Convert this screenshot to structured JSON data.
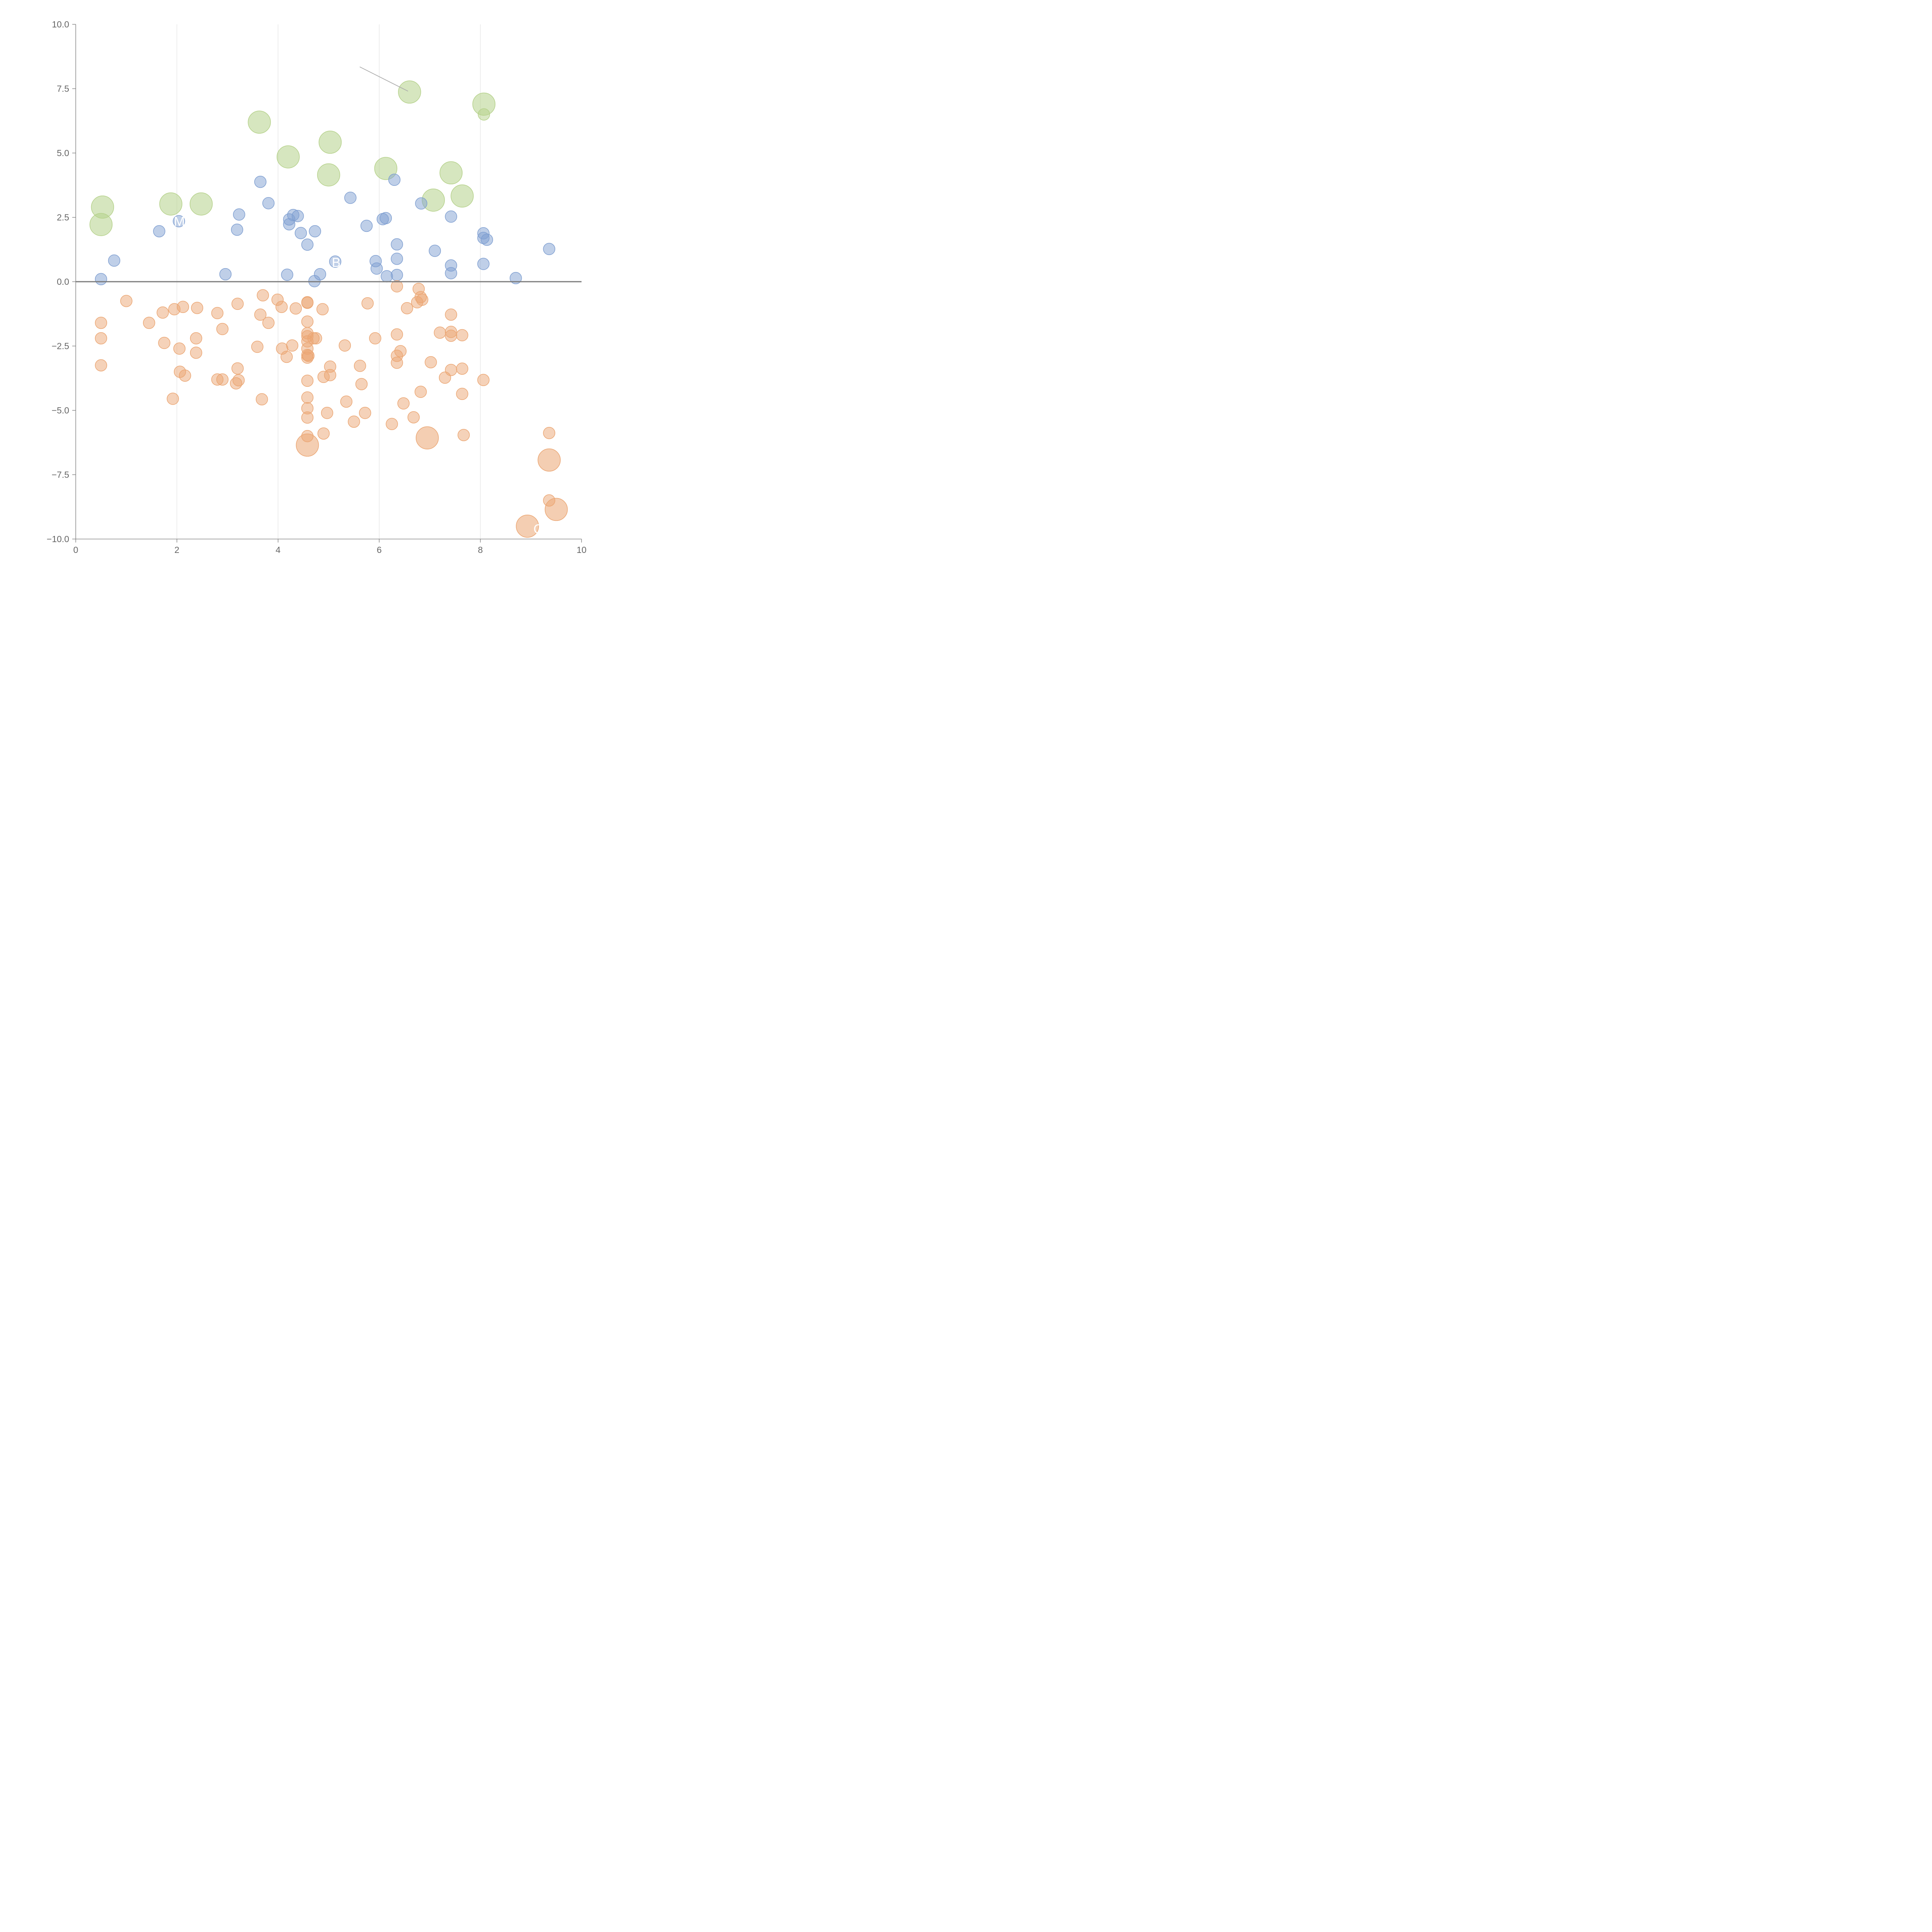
{
  "chart_data": {
    "type": "scatter",
    "title": "",
    "xlabel": "",
    "ylabel": "",
    "xlim": [
      0,
      10
    ],
    "ylim": [
      -10,
      10
    ],
    "x_ticks": [
      "0",
      "2",
      "4",
      "6",
      "8",
      "10"
    ],
    "y_ticks": [
      "10.0",
      "7.5",
      "5.0",
      "2.5",
      "0.0",
      "−2.5",
      "−5.0",
      "−7.5",
      "−10.0"
    ],
    "grid": "vertical",
    "reference_line_y": 0,
    "colors": {
      "green": "#b5d18a",
      "blue": "#7f9fd1",
      "orange": "#eba673"
    },
    "labels": [
      {
        "text": "M",
        "x": 2.05,
        "y": 2.35
      },
      {
        "text": "B",
        "x": 5.15,
        "y": 0.75
      },
      {
        "text": "G",
        "x": 9.15,
        "y": -9.6
      }
    ],
    "series": [
      {
        "group": "green",
        "points": [
          [
            0.53,
            2.9,
            1
          ],
          [
            0.5,
            2.22,
            1
          ],
          [
            1.88,
            3.02,
            1
          ],
          [
            2.48,
            3.02,
            1
          ],
          [
            3.63,
            6.2,
            1
          ],
          [
            4.2,
            4.85,
            1
          ],
          [
            5.03,
            5.42,
            1
          ],
          [
            5.0,
            4.15,
            1
          ],
          [
            6.13,
            4.4,
            1
          ],
          [
            6.6,
            7.37,
            1
          ],
          [
            7.07,
            3.17,
            1
          ],
          [
            7.42,
            4.23,
            1
          ],
          [
            7.64,
            3.33,
            1
          ],
          [
            8.07,
            6.9,
            1
          ],
          [
            8.07,
            6.5,
            0
          ]
        ]
      },
      {
        "group": "blue",
        "points": [
          [
            0.5,
            0.1,
            0
          ],
          [
            0.76,
            0.82,
            0
          ],
          [
            1.65,
            1.96,
            0
          ],
          [
            2.04,
            2.35,
            0
          ],
          [
            2.96,
            0.29,
            0
          ],
          [
            3.19,
            2.02,
            0
          ],
          [
            3.23,
            2.61,
            0
          ],
          [
            3.65,
            3.88,
            0
          ],
          [
            3.81,
            3.05,
            0
          ],
          [
            4.18,
            0.27,
            0
          ],
          [
            4.22,
            2.23,
            0
          ],
          [
            4.22,
            2.42,
            0
          ],
          [
            4.3,
            2.59,
            0
          ],
          [
            4.39,
            2.55,
            0
          ],
          [
            4.45,
            1.89,
            0
          ],
          [
            4.58,
            1.44,
            0
          ],
          [
            4.72,
            0.02,
            0
          ],
          [
            4.73,
            1.96,
            0
          ],
          [
            4.83,
            0.29,
            0
          ],
          [
            5.13,
            0.78,
            0
          ],
          [
            5.43,
            3.26,
            0
          ],
          [
            5.75,
            2.17,
            0
          ],
          [
            5.93,
            0.8,
            0
          ],
          [
            5.95,
            0.51,
            0
          ],
          [
            6.07,
            2.43,
            0
          ],
          [
            6.13,
            2.47,
            0
          ],
          [
            6.15,
            0.21,
            0
          ],
          [
            6.3,
            3.96,
            0
          ],
          [
            6.35,
            1.45,
            0
          ],
          [
            6.35,
            0.89,
            0
          ],
          [
            6.35,
            0.26,
            0
          ],
          [
            6.83,
            3.04,
            0
          ],
          [
            7.1,
            1.2,
            0
          ],
          [
            7.42,
            2.53,
            0
          ],
          [
            7.42,
            0.63,
            0
          ],
          [
            7.42,
            0.33,
            0
          ],
          [
            8.06,
            1.88,
            0
          ],
          [
            8.06,
            1.7,
            0
          ],
          [
            8.13,
            1.63,
            0
          ],
          [
            8.06,
            0.69,
            0
          ],
          [
            8.7,
            0.14,
            0
          ],
          [
            9.36,
            1.27,
            0
          ]
        ]
      },
      {
        "group": "orange",
        "points": [
          [
            0.5,
            -1.6,
            0
          ],
          [
            0.5,
            -2.2,
            0
          ],
          [
            0.5,
            -3.25,
            0
          ],
          [
            1.0,
            -0.75,
            0
          ],
          [
            1.45,
            -1.6,
            0
          ],
          [
            1.72,
            -1.2,
            0
          ],
          [
            1.75,
            -2.38,
            0
          ],
          [
            1.92,
            -4.55,
            0
          ],
          [
            1.95,
            -1.07,
            0
          ],
          [
            2.05,
            -2.6,
            0
          ],
          [
            2.06,
            -3.5,
            0
          ],
          [
            2.12,
            -0.98,
            0
          ],
          [
            2.16,
            -3.65,
            0
          ],
          [
            2.38,
            -2.2,
            0
          ],
          [
            2.38,
            -2.76,
            0
          ],
          [
            2.4,
            -1.02,
            0
          ],
          [
            2.8,
            -1.22,
            0
          ],
          [
            2.8,
            -3.8,
            0
          ],
          [
            2.9,
            -1.84,
            0
          ],
          [
            2.9,
            -3.8,
            0
          ],
          [
            3.17,
            -3.95,
            0
          ],
          [
            3.2,
            -0.86,
            0
          ],
          [
            3.2,
            -3.37,
            0
          ],
          [
            3.22,
            -3.83,
            0
          ],
          [
            3.59,
            -2.53,
            0
          ],
          [
            3.65,
            -1.28,
            0
          ],
          [
            3.68,
            -4.57,
            0
          ],
          [
            3.7,
            -0.53,
            0
          ],
          [
            3.81,
            -1.6,
            0
          ],
          [
            3.99,
            -0.7,
            0
          ],
          [
            4.07,
            -0.98,
            0
          ],
          [
            4.08,
            -2.6,
            0
          ],
          [
            4.17,
            -2.92,
            0
          ],
          [
            4.28,
            -2.48,
            0
          ],
          [
            4.35,
            -1.04,
            0
          ],
          [
            4.58,
            -0.8,
            0
          ],
          [
            4.58,
            -0.82,
            0
          ],
          [
            4.58,
            -1.55,
            0
          ],
          [
            4.58,
            -2.0,
            0
          ],
          [
            4.58,
            -2.12,
            0
          ],
          [
            4.58,
            -2.32,
            0
          ],
          [
            4.58,
            -2.6,
            0
          ],
          [
            4.58,
            -2.85,
            0
          ],
          [
            4.58,
            -2.95,
            0
          ],
          [
            4.6,
            -2.88,
            0
          ],
          [
            4.58,
            -3.85,
            0
          ],
          [
            4.58,
            -4.5,
            0
          ],
          [
            4.58,
            -4.92,
            0
          ],
          [
            4.58,
            -5.28,
            0
          ],
          [
            4.58,
            -6.0,
            0
          ],
          [
            4.58,
            -6.35,
            1
          ],
          [
            4.7,
            -2.2,
            0
          ],
          [
            4.75,
            -2.2,
            0
          ],
          [
            4.88,
            -1.07,
            0
          ],
          [
            4.9,
            -3.7,
            0
          ],
          [
            4.9,
            -5.9,
            0
          ],
          [
            4.97,
            -5.1,
            0
          ],
          [
            5.03,
            -3.3,
            0
          ],
          [
            5.03,
            -3.63,
            0
          ],
          [
            5.32,
            -2.48,
            0
          ],
          [
            5.35,
            -4.66,
            0
          ],
          [
            5.5,
            -5.44,
            0
          ],
          [
            5.62,
            -3.27,
            0
          ],
          [
            5.65,
            -3.98,
            0
          ],
          [
            5.72,
            -5.1,
            0
          ],
          [
            5.77,
            -0.84,
            0
          ],
          [
            5.92,
            -2.2,
            0
          ],
          [
            6.25,
            -5.53,
            0
          ],
          [
            6.35,
            -0.18,
            0
          ],
          [
            6.35,
            -2.05,
            0
          ],
          [
            6.35,
            -2.88,
            0
          ],
          [
            6.35,
            -3.15,
            0
          ],
          [
            6.42,
            -2.7,
            0
          ],
          [
            6.48,
            -4.73,
            0
          ],
          [
            6.55,
            -1.03,
            0
          ],
          [
            6.68,
            -5.27,
            0
          ],
          [
            6.75,
            -0.8,
            0
          ],
          [
            6.78,
            -0.28,
            0
          ],
          [
            6.82,
            -0.6,
            0
          ],
          [
            6.85,
            -0.7,
            0
          ],
          [
            6.82,
            -4.28,
            0
          ],
          [
            6.95,
            -6.07,
            1
          ],
          [
            7.02,
            -3.13,
            0
          ],
          [
            7.2,
            -1.98,
            0
          ],
          [
            7.3,
            -3.73,
            0
          ],
          [
            7.42,
            -1.28,
            0
          ],
          [
            7.42,
            -1.95,
            0
          ],
          [
            7.42,
            -2.1,
            0
          ],
          [
            7.42,
            -3.43,
            0
          ],
          [
            7.64,
            -2.08,
            0
          ],
          [
            7.64,
            -3.38,
            0
          ],
          [
            7.64,
            -4.36,
            0
          ],
          [
            7.67,
            -5.96,
            0
          ],
          [
            8.06,
            -3.82,
            0
          ],
          [
            9.36,
            -5.88,
            0
          ],
          [
            9.36,
            -6.93,
            1
          ],
          [
            9.36,
            -8.5,
            0
          ],
          [
            9.5,
            -8.85,
            1
          ],
          [
            8.93,
            -9.5,
            1
          ]
        ]
      }
    ]
  }
}
